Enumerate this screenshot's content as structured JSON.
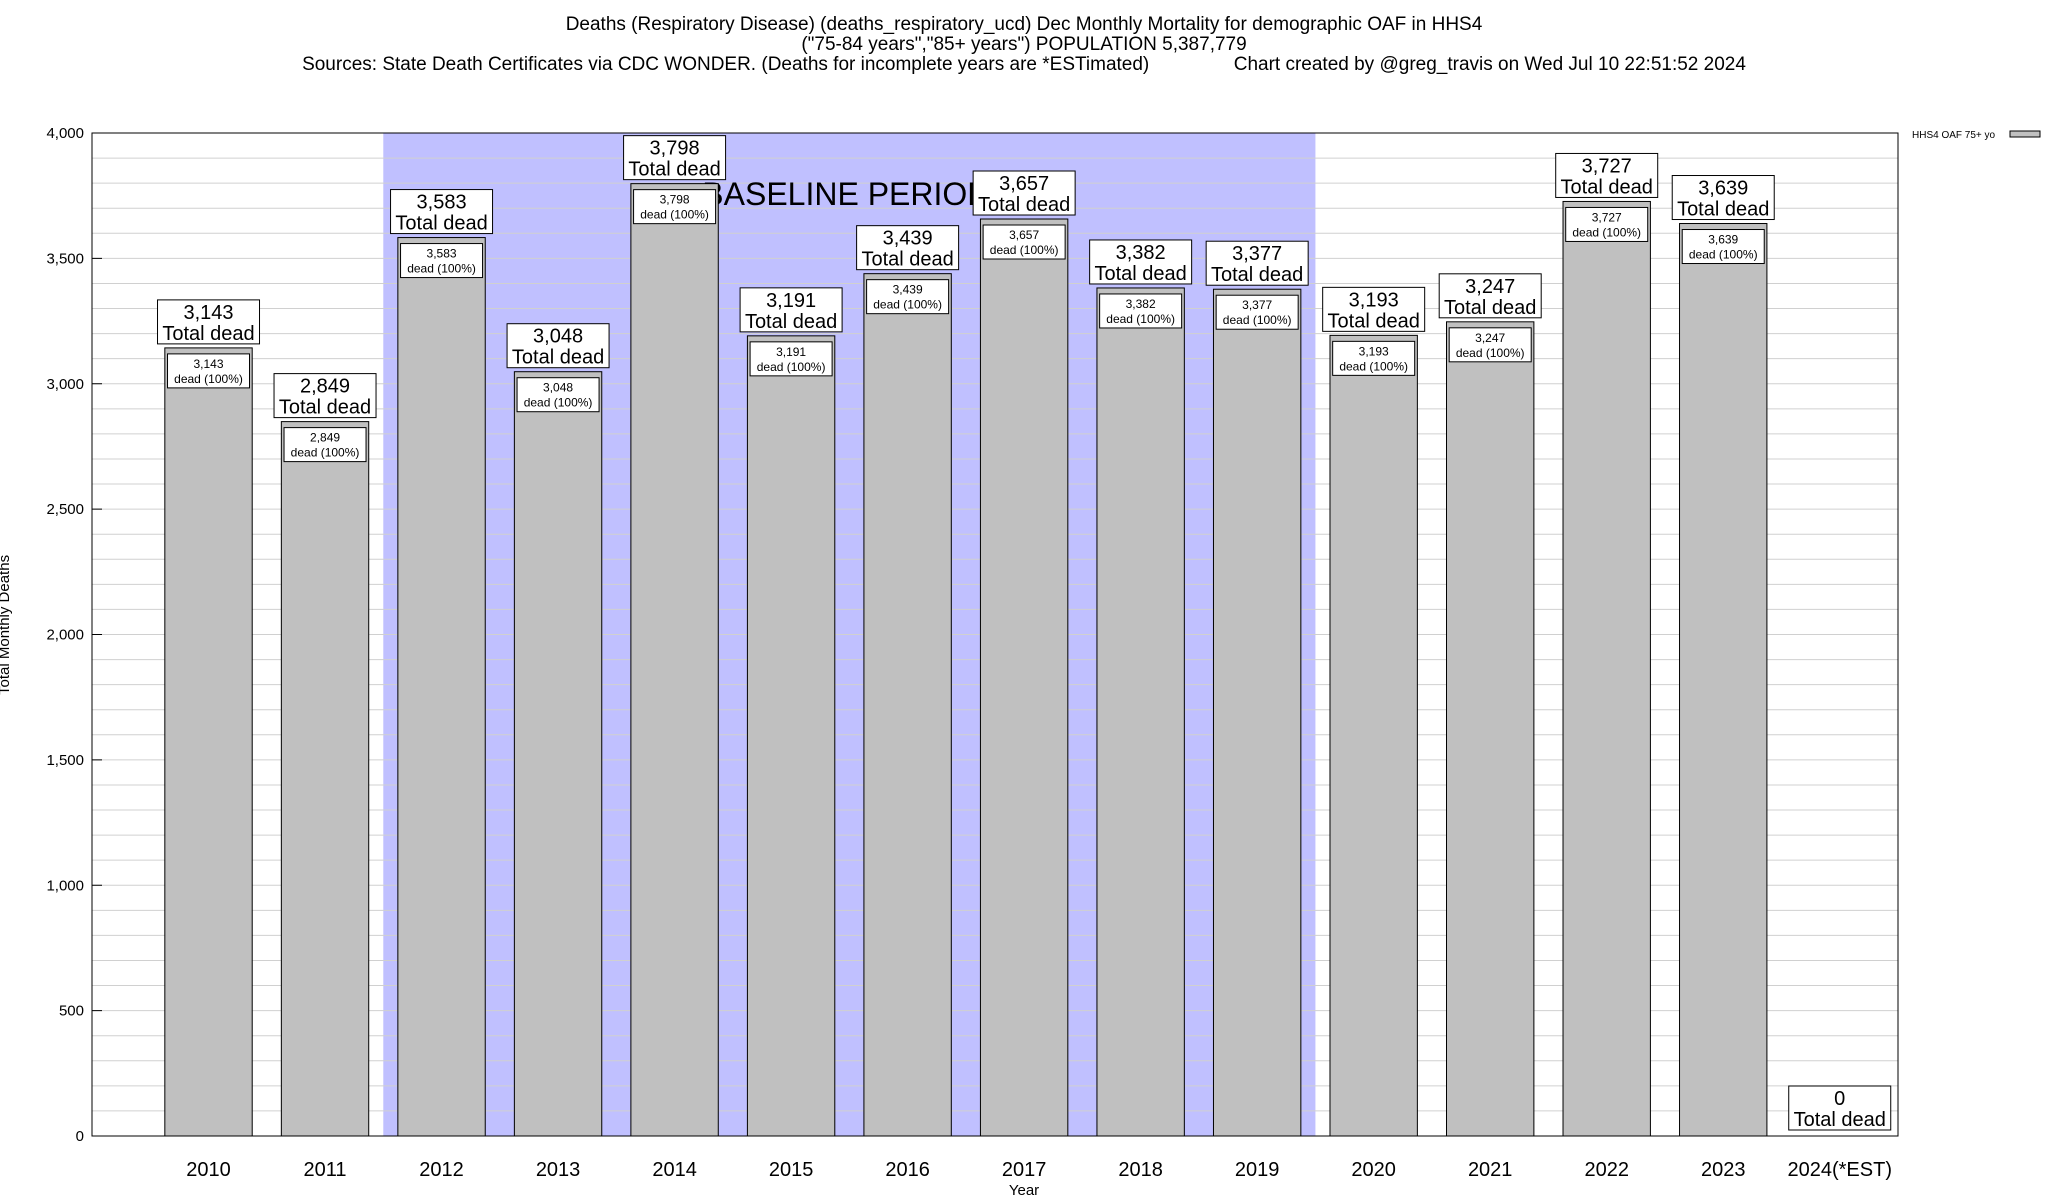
{
  "title": {
    "line1": "Deaths (Respiratory Disease) (deaths_respiratory_ucd) Dec Monthly Mortality for demographic OAF in HHS4",
    "line2": "(\"75-84 years\",\"85+ years\") POPULATION 5,387,779",
    "line3": "Sources: State Death Certificates via CDC WONDER. (Deaths for incomplete years are *ESTimated)                Chart created by @greg_travis on Wed Jul 10 22:51:52 2024"
  },
  "chart_data": {
    "type": "bar",
    "categories": [
      "2010",
      "2011",
      "2012",
      "2013",
      "2014",
      "2015",
      "2016",
      "2017",
      "2018",
      "2019",
      "2020",
      "2021",
      "2022",
      "2023",
      "2024(*EST)"
    ],
    "series": [
      {
        "name": "HHS4 OAF 75+ yo",
        "values": [
          3143,
          2849,
          3583,
          3048,
          3798,
          3191,
          3439,
          3657,
          3382,
          3377,
          3193,
          3247,
          3727,
          3639,
          0
        ]
      }
    ],
    "top_labels": [
      "3,143",
      "2,849",
      "3,583",
      "3,048",
      "3,798",
      "3,191",
      "3,439",
      "3,657",
      "3,382",
      "3,377",
      "3,193",
      "3,247",
      "3,727",
      "3,639",
      "0"
    ],
    "top_label_suffix": "Total dead",
    "inner_labels": [
      "3,143",
      "2,849",
      "3,583",
      "3,048",
      "3,798",
      "3,191",
      "3,439",
      "3,657",
      "3,382",
      "3,377",
      "3,193",
      "3,247",
      "3,727",
      "3,639",
      ""
    ],
    "inner_label_suffix": "dead (100%)",
    "ylabel": "Total Monthly Deaths",
    "xlabel": "Year",
    "ylim": [
      0,
      4000
    ],
    "yticks": [
      0,
      500,
      1000,
      1500,
      2000,
      2500,
      3000,
      3500,
      4000
    ],
    "ytick_labels": [
      "0",
      "500",
      "1,000",
      "1,500",
      "2,000",
      "2,500",
      "3,000",
      "3,500",
      "4,000"
    ],
    "minor_grid_step": 100,
    "grid": true,
    "baseline_period": {
      "label": "BASELINE PERIOD",
      "start": "2012",
      "end": "2019"
    },
    "legend_position": "top-right",
    "colors": {
      "bar": "#c0c0c0",
      "baseline": "#c0c0ff",
      "grid": "#d0d0d0"
    }
  }
}
